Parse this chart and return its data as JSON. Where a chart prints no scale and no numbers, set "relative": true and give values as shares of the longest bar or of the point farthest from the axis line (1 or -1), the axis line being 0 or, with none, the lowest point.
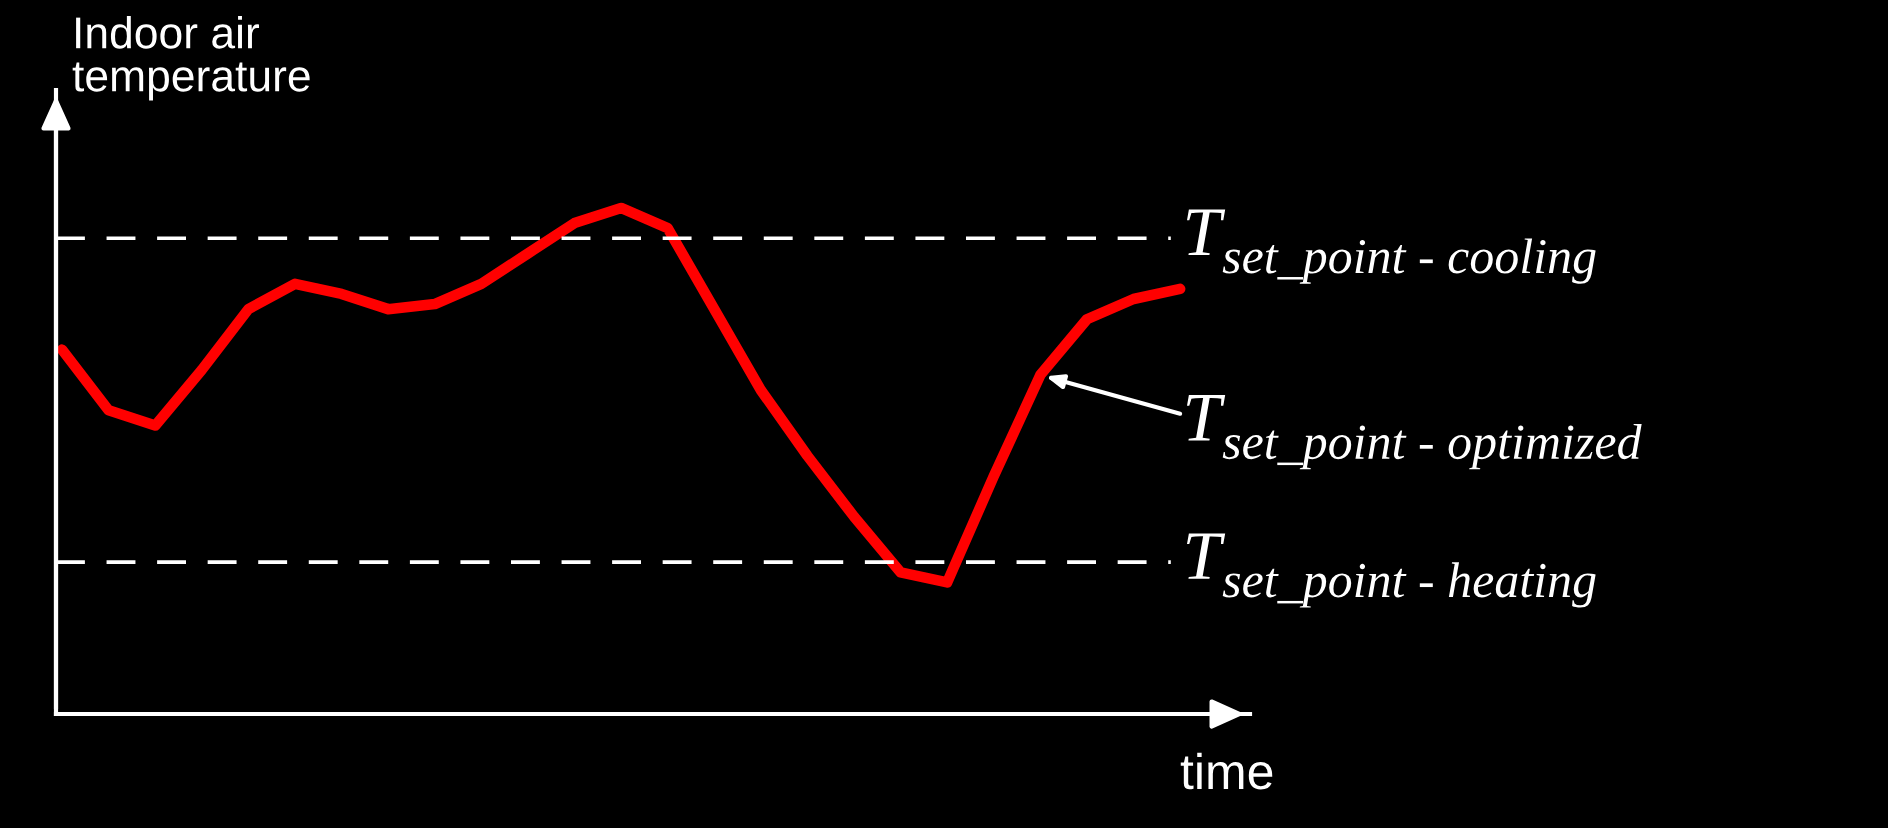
{
  "chart_data": {
    "type": "line",
    "relative": true,
    "xlabel": "time",
    "ylabel": "Indoor air\ntemperature",
    "categories": [
      null,
      null,
      null,
      null,
      null,
      null,
      null,
      null,
      null,
      null,
      null,
      null,
      null,
      null,
      null,
      null,
      null,
      null,
      null,
      null,
      null,
      null,
      null,
      null,
      null
    ],
    "series": [
      {
        "color": "#ff0000",
        "values": [
          0.72,
          0.6,
          0.57,
          0.68,
          0.8,
          0.85,
          0.83,
          0.8,
          0.81,
          0.85,
          0.91,
          0.97,
          1.0,
          0.96,
          0.8,
          0.64,
          0.51,
          0.39,
          0.28,
          0.26,
          0.47,
          0.67,
          0.78,
          0.82,
          0.84
        ]
      }
    ],
    "ref_lines": [
      {
        "axis": "y",
        "value": 0.94,
        "label": "T$_{set_point - cooling}$",
        "color": "#ffffff",
        "line_style": "dashed"
      },
      {
        "axis": "y",
        "value": 0.3,
        "label": "T$_{set_point - heating}$",
        "color": "#ffffff",
        "line_style": "dashed"
      }
    ],
    "annotations": [
      "T$_{set_point - optimized}$"
    ],
    "legend": false,
    "marker": "none",
    "line_style": "solid"
  }
}
